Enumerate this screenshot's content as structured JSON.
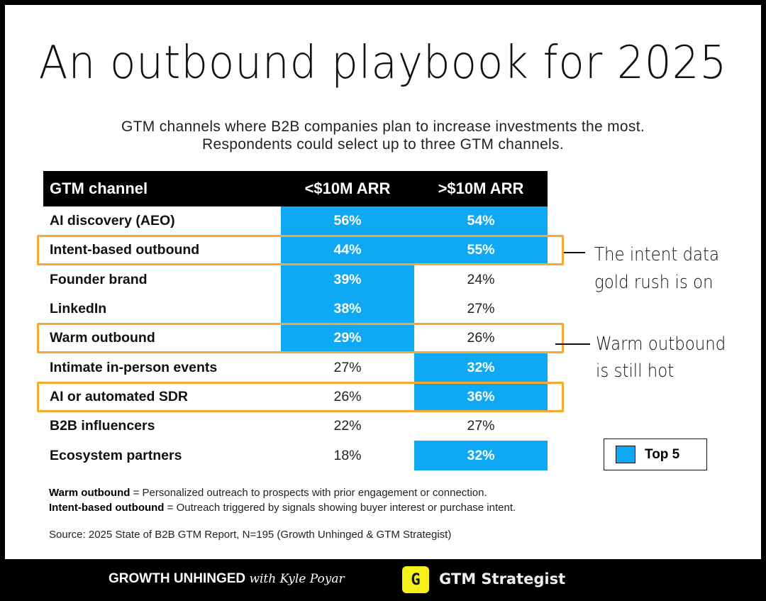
{
  "title": "An outbound playbook for 2025",
  "subtitle": [
    "GTM channels where B2B companies plan to increase investments the most.",
    "Respondents could select up to three GTM channels."
  ],
  "chart_data": {
    "type": "table",
    "columns": [
      "GTM channel",
      "<$10M ARR",
      ">$10M ARR"
    ],
    "rows": [
      {
        "channel": "AI discovery (AEO)",
        "under": "56%",
        "over": "54%",
        "under_top": true,
        "over_top": true
      },
      {
        "channel": "Intent-based outbound",
        "under": "44%",
        "over": "55%",
        "under_top": true,
        "over_top": true,
        "outlined": true
      },
      {
        "channel": "Founder brand",
        "under": "39%",
        "over": "24%",
        "under_top": true,
        "over_top": false
      },
      {
        "channel": "LinkedIn",
        "under": "38%",
        "over": "27%",
        "under_top": true,
        "over_top": false
      },
      {
        "channel": "Warm outbound",
        "under": "29%",
        "over": "26%",
        "under_top": true,
        "over_top": false,
        "outlined": true
      },
      {
        "channel": "Intimate in-person events",
        "under": "27%",
        "over": "32%",
        "under_top": false,
        "over_top": true
      },
      {
        "channel": "AI or automated SDR",
        "under": "26%",
        "over": "36%",
        "under_top": false,
        "over_top": true,
        "outlined": true
      },
      {
        "channel": "B2B influencers",
        "under": "22%",
        "over": "27%",
        "under_top": false,
        "over_top": false
      },
      {
        "channel": "Ecosystem partners",
        "under": "18%",
        "over": "32%",
        "under_top": false,
        "over_top": true
      }
    ],
    "legend": "Top 5",
    "highlight_color": "#0ea9f2",
    "outline_color": "#f7a933"
  },
  "annotations": [
    [
      "The intent data",
      "gold rush is on"
    ],
    [
      "Warm outbound",
      "is still hot"
    ]
  ],
  "definitions": [
    {
      "term": "Warm outbound",
      "text": " = Personalized outreach to prospects with prior engagement or connection."
    },
    {
      "term": "Intent-based outbound",
      "text": " = Outreach triggered by signals showing buyer interest or purchase intent."
    }
  ],
  "source": "Source: 2025 State of B2B GTM Report, N=195 (Growth Unhinged & GTM Strategist)",
  "footer": {
    "brand1": "GROWTH UNHINGED",
    "brand1_with": "with Kyle Poyar",
    "brand2": "GTM Strategist",
    "brand2_logo": "G"
  }
}
